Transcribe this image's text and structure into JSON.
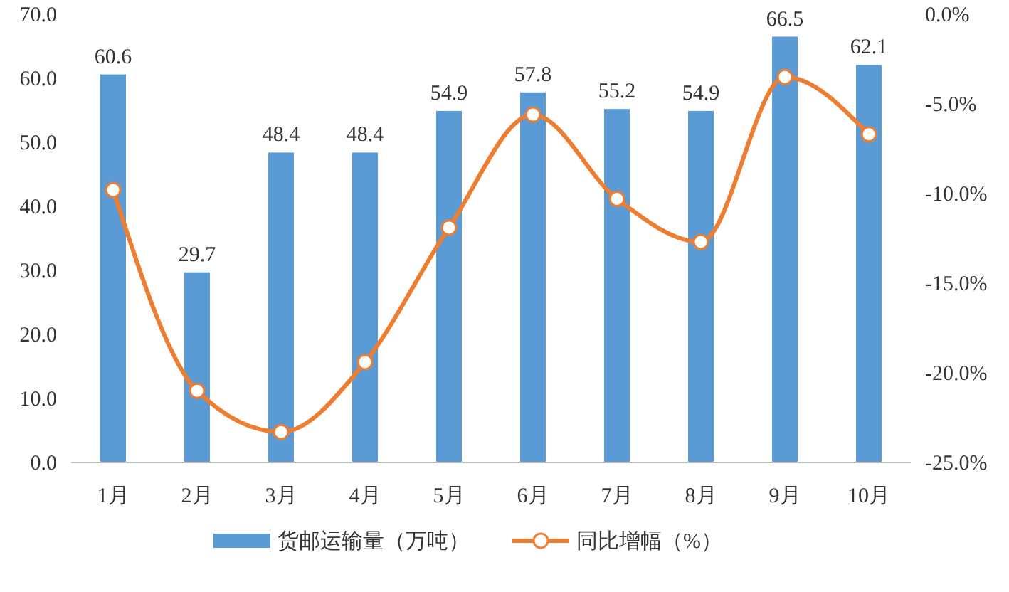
{
  "chart_data": {
    "type": "bar",
    "categories": [
      "1月",
      "2月",
      "3月",
      "4月",
      "5月",
      "6月",
      "7月",
      "8月",
      "9月",
      "10月"
    ],
    "series": [
      {
        "name": "货邮运输量（万吨）",
        "color": "#5b9bd5",
        "values": [
          60.6,
          29.7,
          48.4,
          48.4,
          54.9,
          57.8,
          55.2,
          54.9,
          66.5,
          62.1
        ],
        "value_labels": [
          "60.6",
          "29.7",
          "48.4",
          "48.4",
          "54.9",
          "57.8",
          "55.2",
          "54.9",
          "66.5",
          "62.1"
        ]
      },
      {
        "name": "同比增幅（%）",
        "type": "line",
        "axis": "y2",
        "color": "#ed7d31",
        "marker": "circle",
        "values": [
          -9.8,
          -21.0,
          -23.3,
          -19.4,
          -11.9,
          -5.6,
          -10.3,
          -12.7,
          -3.5,
          -6.7
        ]
      }
    ],
    "ylim": [
      0,
      70
    ],
    "yticks": [
      {
        "value": 0,
        "label": "0.0"
      },
      {
        "value": 10,
        "label": "10.0"
      },
      {
        "value": 20,
        "label": "20.0"
      },
      {
        "value": 30,
        "label": "30.0"
      },
      {
        "value": 40,
        "label": "40.0"
      },
      {
        "value": 50,
        "label": "50.0"
      },
      {
        "value": 60,
        "label": "60.0"
      },
      {
        "value": 70,
        "label": "70.0"
      }
    ],
    "y2lim": [
      -25,
      0
    ],
    "y2ticks": [
      {
        "value": -25,
        "label": "-25.0%"
      },
      {
        "value": -20,
        "label": "-20.0%"
      },
      {
        "value": -15,
        "label": "-15.0%"
      },
      {
        "value": -10,
        "label": "-10.0%"
      },
      {
        "value": -5,
        "label": "-5.0%"
      },
      {
        "value": 0,
        "label": "0.0%"
      }
    ],
    "legend": "bottom",
    "grid": false
  }
}
